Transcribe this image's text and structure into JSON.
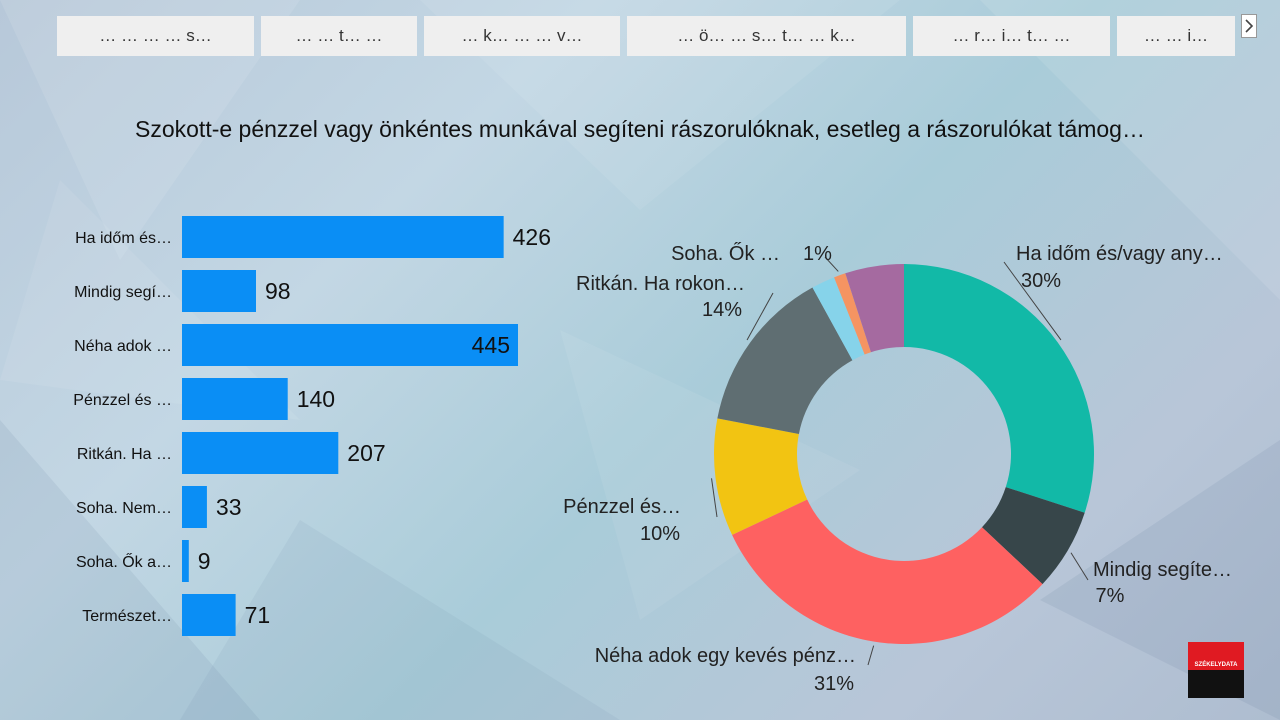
{
  "tabs": [
    {
      "label": "…  …  …  … s…"
    },
    {
      "label": "…  … t…  …"
    },
    {
      "label": "… k… …  … v…"
    },
    {
      "label": "… ö… … s… t…  … k…"
    },
    {
      "label": "… r… i… t…  …"
    },
    {
      "label": "…  … i…"
    }
  ],
  "question": "Szokott-e pénzzel vagy önkéntes munkával segíteni rászorulóknak, esetleg a rászorulókat támog…",
  "logo_text": "SZÉKELYDATA",
  "colors": {
    "bar": "#0a8ef5",
    "donut": [
      "#12b9a7",
      "#37464a",
      "#fe6161",
      "#f2c412",
      "#5f6e72",
      "#86d3ea",
      "#f59462",
      "#a56aa0"
    ]
  },
  "chart_data": [
    {
      "type": "bar",
      "orientation": "horizontal",
      "categories": [
        "Ha időm és…",
        "Mindig segí…",
        "Néha adok …",
        "Pénzzel és …",
        "Ritkán. Ha …",
        "Soha. Nem…",
        "Soha. Ők a…",
        "Természet…"
      ],
      "values": [
        426,
        98,
        445,
        140,
        207,
        33,
        9,
        71
      ],
      "data_labels": [
        "426",
        "98",
        "445",
        "140",
        "207",
        "33",
        "9",
        "71"
      ],
      "title": ""
    },
    {
      "type": "pie",
      "donut": true,
      "slices": [
        {
          "label": "Ha időm és/vagy any…",
          "value": 30,
          "pct_text": "30%"
        },
        {
          "label": "Mindig segíte…",
          "value": 7,
          "pct_text": "7%"
        },
        {
          "label": "Néha adok egy kevés pénz…",
          "value": 31,
          "pct_text": "31%"
        },
        {
          "label": "Pénzzel és…",
          "value": 10,
          "pct_text": "10%"
        },
        {
          "label": "Ritkán. Ha rokon…",
          "value": 14,
          "pct_text": "14%"
        },
        {
          "label": "",
          "value": 2,
          "pct_text": ""
        },
        {
          "label": "Soha. Ők …",
          "value": 1,
          "pct_text": "1%"
        },
        {
          "label": "",
          "value": 5,
          "pct_text": ""
        }
      ]
    }
  ]
}
